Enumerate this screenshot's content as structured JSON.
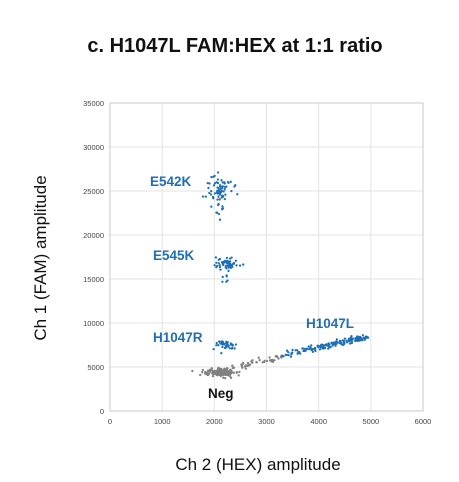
{
  "chart_data": {
    "type": "scatter",
    "title": "c. H1047L FAM:HEX at 1:1 ratio",
    "xlabel": "Ch 2 (HEX) amplitude",
    "ylabel": "Ch 1 (FAM) amplitude",
    "xlim": [
      0,
      6000
    ],
    "ylim": [
      0,
      35000
    ],
    "x_ticks": [
      "0",
      "1000",
      "2000",
      "3000",
      "4000",
      "5000",
      "6000"
    ],
    "y_ticks": [
      "0",
      "5000",
      "10000",
      "15000",
      "20000",
      "25000",
      "30000",
      "35000"
    ],
    "grid": true,
    "clusters": [
      {
        "name": "E542K",
        "color": "#1f6fb5",
        "label_color": "#1f6fb5",
        "center": [
          2100,
          25200
        ],
        "spread": [
          120,
          900
        ],
        "count": 70,
        "tail_to_y": 21500
      },
      {
        "name": "E545K",
        "color": "#1f6fb5",
        "label_color": "#1f6fb5",
        "center": [
          2250,
          16900
        ],
        "spread": [
          110,
          300
        ],
        "count": 55,
        "tail_to_y": 14500
      },
      {
        "name": "H1047R",
        "color": "#1f6fb5",
        "label_color": "#1f6fb5",
        "center": [
          2200,
          7500
        ],
        "spread": [
          110,
          300
        ],
        "count": 40
      },
      {
        "name": "H1047L",
        "color": "#1f6fb5",
        "label_color": "#1f6fb5",
        "band_from": [
          3100,
          6100
        ],
        "band_to": [
          4900,
          8400
        ],
        "count": 160
      },
      {
        "name": "Neg",
        "color": "#808080",
        "label_color": "#111111",
        "center": [
          2100,
          4400
        ],
        "spread": [
          150,
          200
        ],
        "count": 180,
        "band_from": [
          2300,
          4800
        ],
        "band_to": [
          3300,
          6200
        ],
        "band_count": 40
      }
    ]
  }
}
